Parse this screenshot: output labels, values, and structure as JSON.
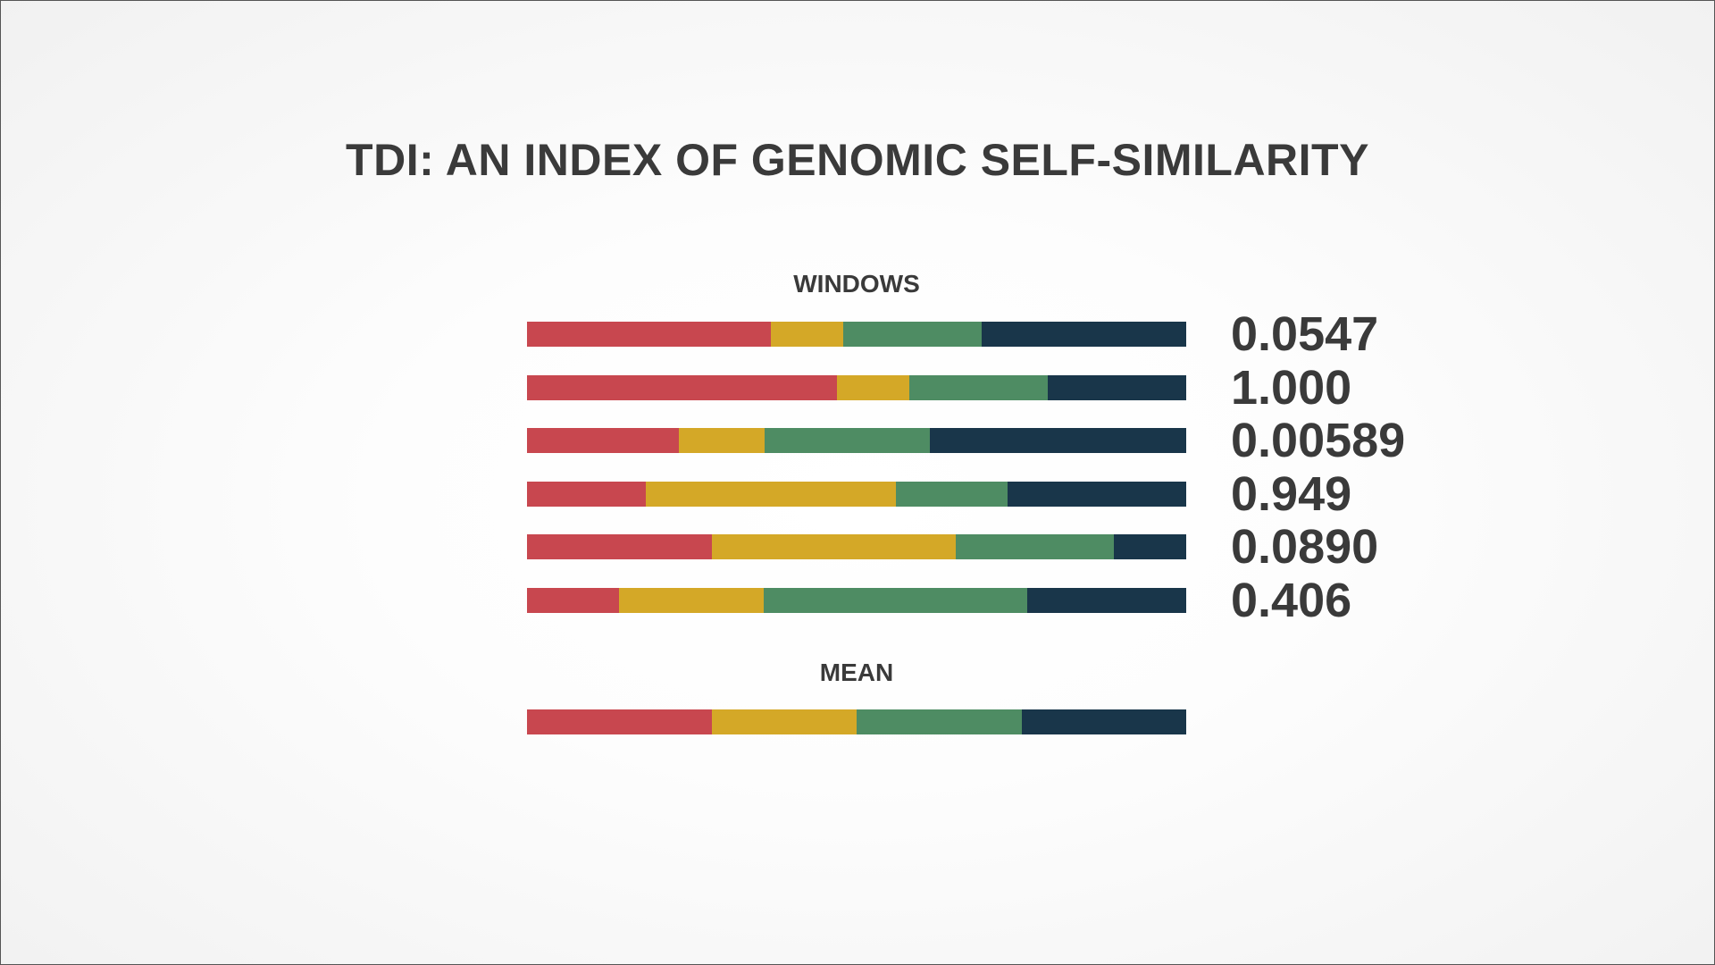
{
  "slide": {
    "title": "TDI: AN INDEX OF GENOMIC SELF-SIMILARITY",
    "windows_label": "WINDOWS",
    "mean_label": "MEAN"
  },
  "chart_data": {
    "type": "bar",
    "orientation": "horizontal",
    "stacked": true,
    "normalized": true,
    "title": "TDI: AN INDEX OF GENOMIC SELF-SIMILARITY",
    "colors": [
      "#c8474f",
      "#d4a827",
      "#4e8c63",
      "#19364a"
    ],
    "grid": false,
    "legend": "none",
    "windows": [
      {
        "segments": [
          0.37,
          0.11,
          0.21,
          0.31
        ],
        "value_label": "0.0547"
      },
      {
        "segments": [
          0.47,
          0.11,
          0.21,
          0.21
        ],
        "value_label": "1.000"
      },
      {
        "segments": [
          0.23,
          0.13,
          0.25,
          0.39
        ],
        "value_label": "0.00589"
      },
      {
        "segments": [
          0.18,
          0.38,
          0.17,
          0.27
        ],
        "value_label": "0.949"
      },
      {
        "segments": [
          0.28,
          0.37,
          0.24,
          0.12
        ],
        "value_label": "0.0890"
      },
      {
        "segments": [
          0.14,
          0.22,
          0.4,
          0.24
        ],
        "value_label": "0.406"
      }
    ],
    "mean": {
      "segments": [
        0.28,
        0.22,
        0.25,
        0.25
      ]
    }
  }
}
